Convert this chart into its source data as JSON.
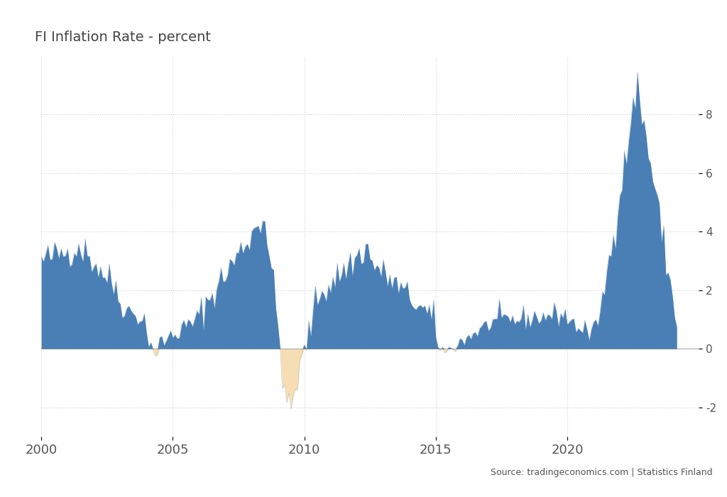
{
  "title": "FI Inflation Rate - percent",
  "source_text": "Source: tradingeconomics.com | Statistics Finland",
  "xlim": [
    2000,
    2025
  ],
  "ylim": [
    -3,
    10
  ],
  "yticks": [
    -2,
    0,
    2,
    4,
    6,
    8
  ],
  "xticks": [
    2000,
    2005,
    2010,
    2015,
    2020
  ],
  "bar_color_pos": "#4a7fb5",
  "bar_color_neg": "#f5deb3",
  "background_color": "#ffffff",
  "grid_color": "#cccccc",
  "title_color": "#444444",
  "tick_color": "#555555"
}
